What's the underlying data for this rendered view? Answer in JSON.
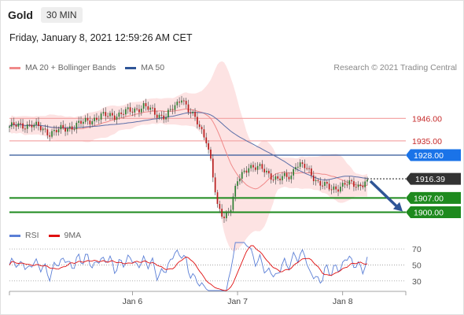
{
  "header": {
    "instrument": "Gold",
    "timeframe": "30 MIN",
    "timestamp": "Friday, January 8, 2021 12:59:26 AM CET"
  },
  "legend": [
    {
      "label": "MA 20 + Bollinger Bands",
      "color": "#f08a8a"
    },
    {
      "label": "MA 50",
      "color": "#2f5597"
    }
  ],
  "credit": "Research © 2021 Trading Central",
  "rsi_legend": [
    {
      "label": "RSI",
      "color": "#5b7fd6"
    },
    {
      "label": "9MA",
      "color": "#e01010"
    }
  ],
  "chart_data": {
    "type": "candlestick",
    "y_range": [
      1889,
      1967
    ],
    "x_tick_labels": [
      "Jan 6",
      "Jan 7",
      "Jan 8"
    ],
    "current_price": "1916.39",
    "levels": [
      {
        "label": "1946.00",
        "value": 1946,
        "kind": "resistance"
      },
      {
        "label": "1935.00",
        "value": 1935,
        "kind": "resistance"
      },
      {
        "label": "1928.00",
        "value": 1928,
        "kind": "pivot"
      },
      {
        "label": "1907.00",
        "value": 1907,
        "kind": "support"
      },
      {
        "label": "1900.00",
        "value": 1900,
        "kind": "support"
      }
    ],
    "forecast": {
      "from": 1916.4,
      "to": 1900,
      "direction": "down"
    },
    "rsi": {
      "y_range": [
        15,
        80
      ],
      "ticks": [
        "70",
        "50",
        "30"
      ],
      "tick_values": [
        70,
        50,
        30
      ]
    },
    "keypoints": [
      [
        0,
        1942
      ],
      [
        10,
        1943
      ],
      [
        18,
        1939
      ],
      [
        25,
        1941
      ],
      [
        33,
        1944
      ],
      [
        41,
        1947
      ],
      [
        49,
        1948
      ],
      [
        55,
        1950
      ],
      [
        60,
        1952
      ],
      [
        66,
        1948
      ],
      [
        70,
        1947
      ],
      [
        75,
        1953
      ],
      [
        77,
        1957
      ],
      [
        80,
        1950
      ],
      [
        84,
        1944
      ],
      [
        88,
        1936
      ],
      [
        90,
        1925
      ],
      [
        93,
        1902
      ],
      [
        96,
        1898
      ],
      [
        99,
        1903
      ],
      [
        102,
        1915
      ],
      [
        107,
        1923
      ],
      [
        113,
        1921
      ],
      [
        120,
        1916
      ],
      [
        126,
        1918
      ],
      [
        128,
        1924
      ],
      [
        132,
        1922
      ],
      [
        138,
        1915
      ],
      [
        144,
        1911
      ],
      [
        150,
        1914
      ],
      [
        156,
        1913
      ],
      [
        160,
        1916
      ]
    ]
  }
}
